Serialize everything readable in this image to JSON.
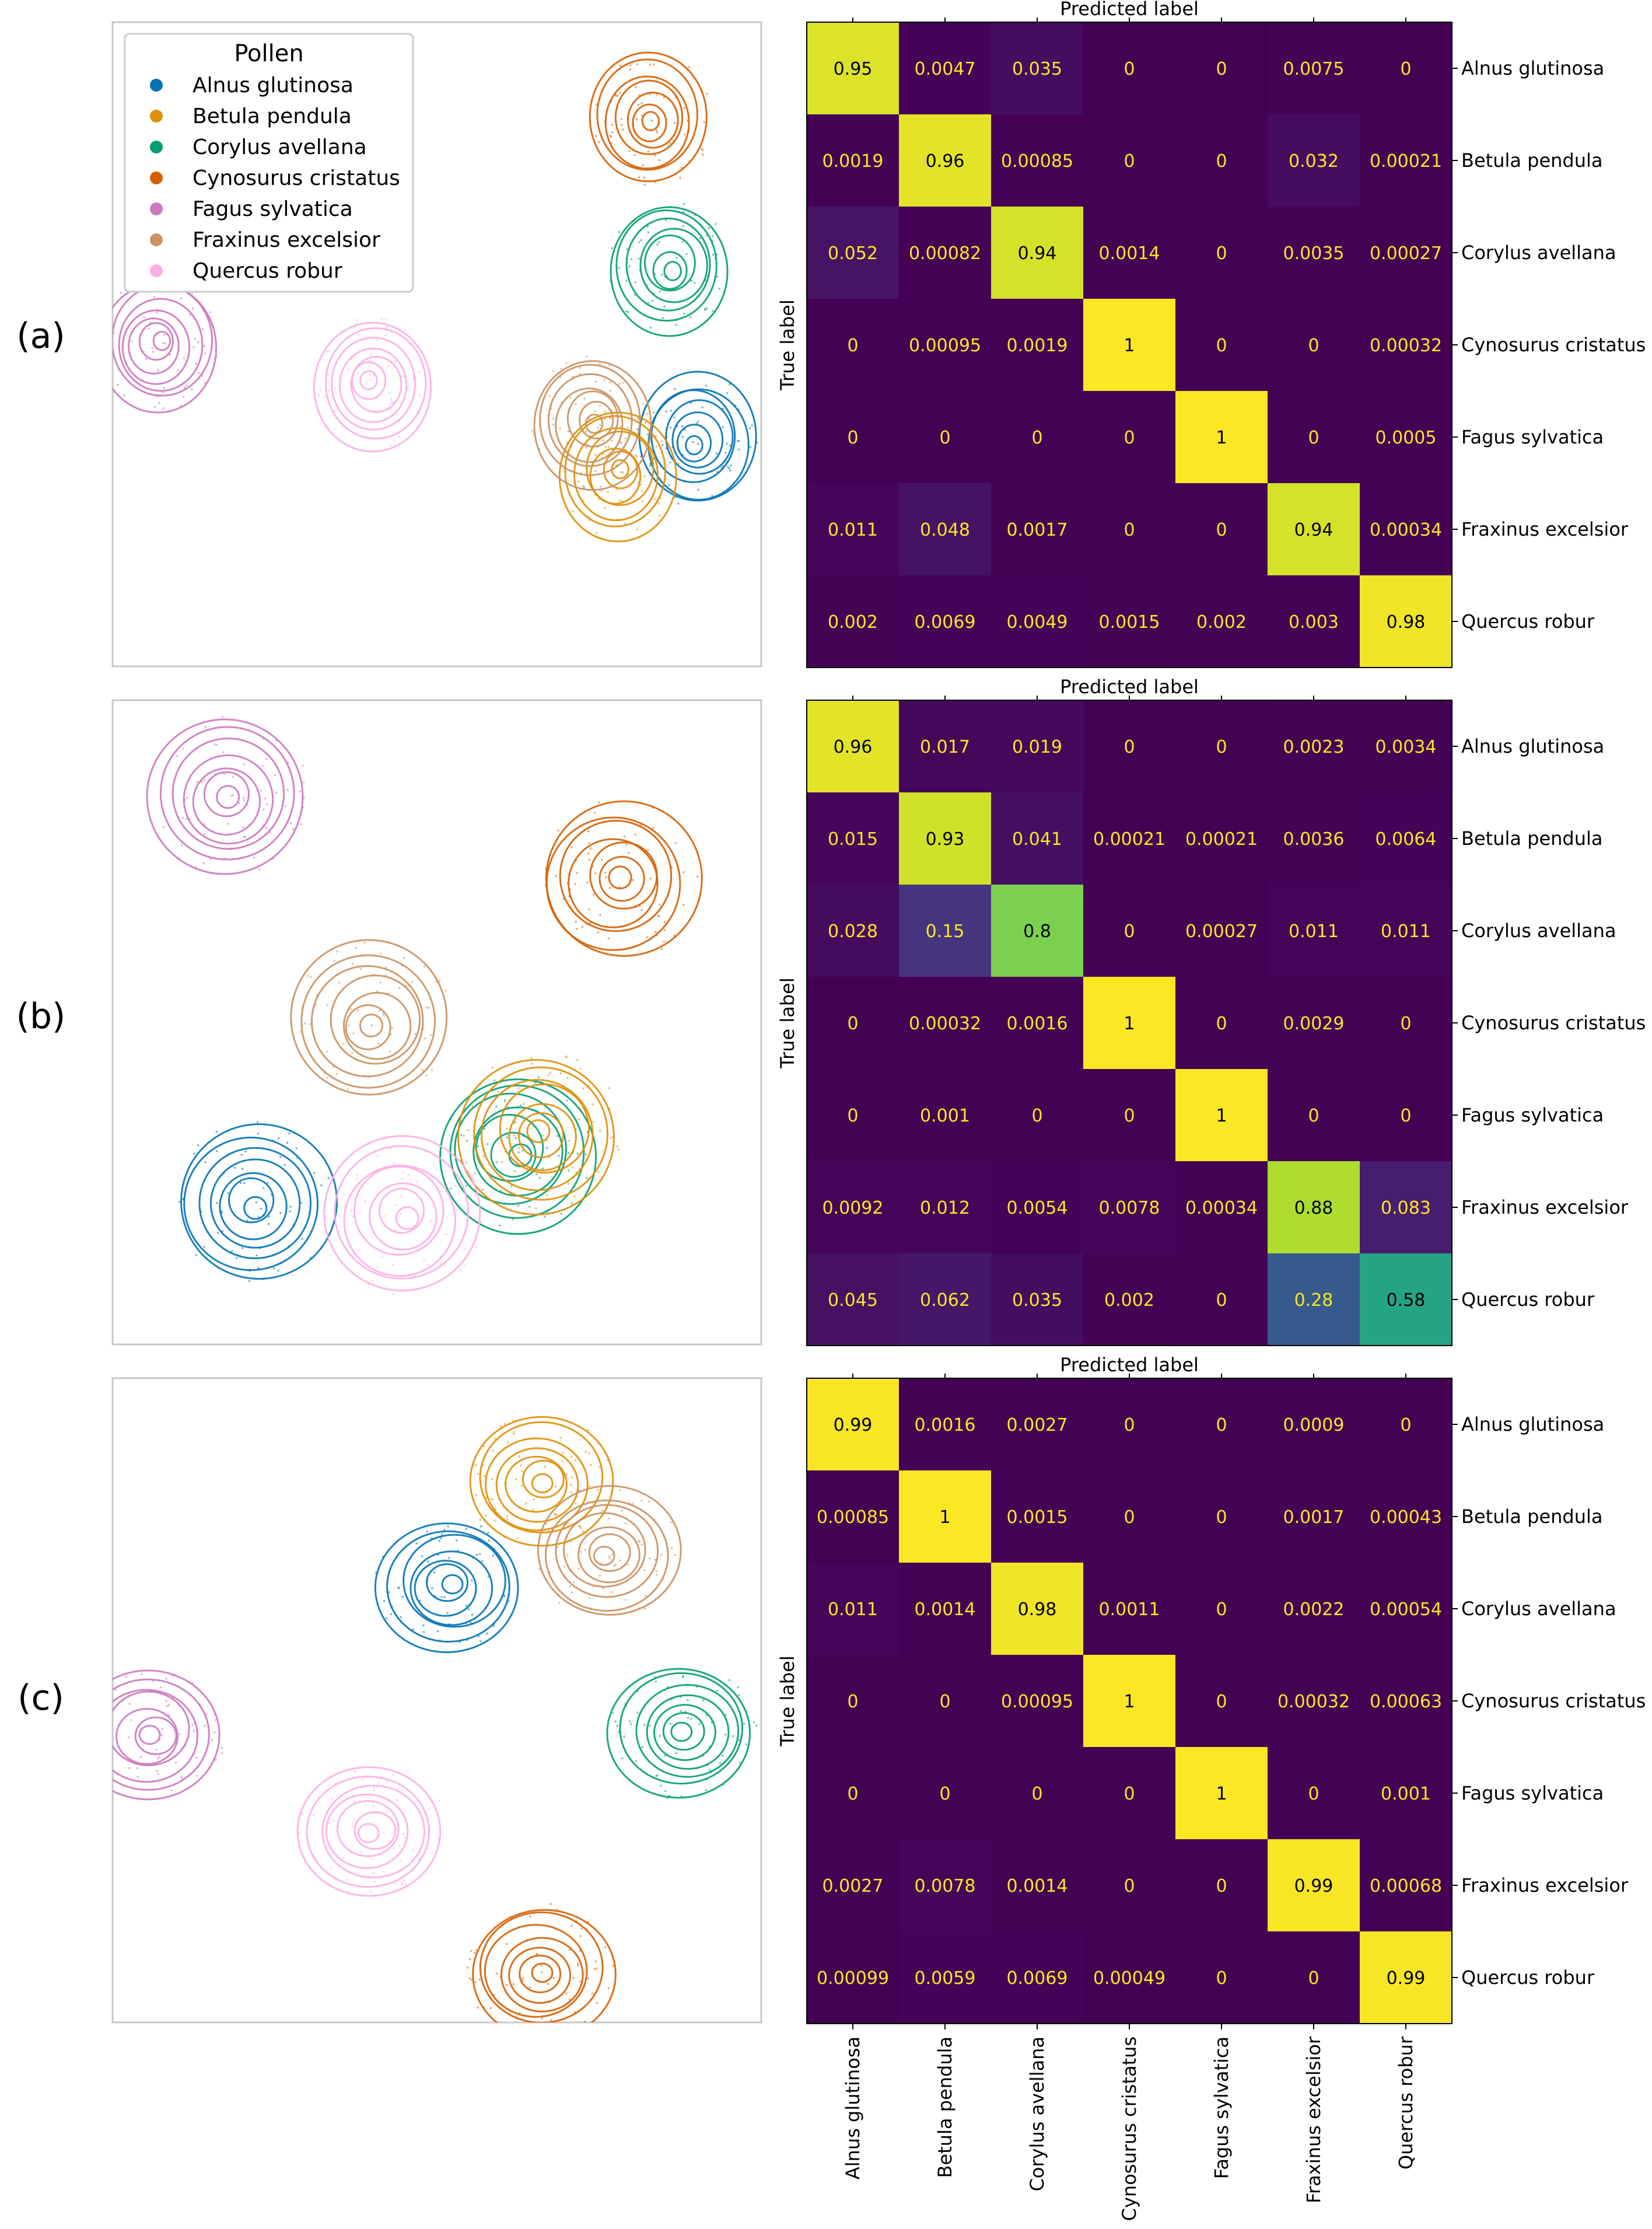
{
  "panel_labels": [
    "(a)",
    "(b)",
    "(c)"
  ],
  "legend": {
    "title": "Pollen",
    "items": [
      {
        "label": "Alnus glutinosa",
        "color": "#0173b2"
      },
      {
        "label": "Betula pendula",
        "color": "#de8f05"
      },
      {
        "label": "Corylus avellana",
        "color": "#029e73"
      },
      {
        "label": "Cynosurus cristatus",
        "color": "#d55e00"
      },
      {
        "label": "Fagus sylvatica",
        "color": "#cc78bc"
      },
      {
        "label": "Fraxinus excelsior",
        "color": "#ca9161"
      },
      {
        "label": "Quercus robur",
        "color": "#fbafe4"
      }
    ]
  },
  "colormap": "viridis",
  "chart_data": [
    {
      "type": "scatter",
      "panel": "(a)",
      "description_kind": "2D embedding with per-class density contours",
      "legend_title": "Pollen",
      "legend_placement": "top-left",
      "clusters": [
        {
          "class": "Cynosurus cristatus",
          "x": 0.83,
          "y": 0.85
        },
        {
          "class": "Corylus avellana",
          "x": 0.86,
          "y": 0.62
        },
        {
          "class": "Alnus glutinosa",
          "x": 0.9,
          "y": 0.35
        },
        {
          "class": "Betula pendula",
          "x": 0.78,
          "y": 0.3
        },
        {
          "class": "Fraxinus excelsior",
          "x": 0.74,
          "y": 0.38
        },
        {
          "class": "Fagus sylvatica",
          "x": 0.07,
          "y": 0.5
        },
        {
          "class": "Quercus robur",
          "x": 0.4,
          "y": 0.44
        }
      ]
    },
    {
      "type": "heatmap",
      "panel": "(a)",
      "title": "Predicted label",
      "xlabel": "Predicted label",
      "ylabel": "True label",
      "categories": [
        "Alnus glutinosa",
        "Betula pendula",
        "Corylus avellana",
        "Cynosurus cristatus",
        "Fagus sylvatica",
        "Fraxinus excelsior",
        "Quercus robur"
      ],
      "matrix": [
        [
          0.95,
          0.0047,
          0.035,
          0,
          0,
          0.0075,
          0
        ],
        [
          0.0019,
          0.96,
          0.00085,
          0,
          0,
          0.032,
          0.00021
        ],
        [
          0.052,
          0.00082,
          0.94,
          0.0014,
          0,
          0.0035,
          0.00027
        ],
        [
          0,
          0.00095,
          0.0019,
          1,
          0,
          0,
          0.00032
        ],
        [
          0,
          0,
          0,
          0,
          1,
          0,
          0.0005
        ],
        [
          0.011,
          0.048,
          0.0017,
          0,
          0,
          0.94,
          0.00034
        ],
        [
          0.002,
          0.0069,
          0.0049,
          0.0015,
          0.002,
          0.003,
          0.98
        ]
      ]
    },
    {
      "type": "scatter",
      "panel": "(b)",
      "description_kind": "2D embedding with per-class density contours",
      "clusters": [
        {
          "class": "Fagus sylvatica",
          "x": 0.18,
          "y": 0.85
        },
        {
          "class": "Cynosurus cristatus",
          "x": 0.78,
          "y": 0.72
        },
        {
          "class": "Fraxinus excelsior",
          "x": 0.4,
          "y": 0.5
        },
        {
          "class": "Alnus glutinosa",
          "x": 0.22,
          "y": 0.22
        },
        {
          "class": "Corylus avellana",
          "x": 0.62,
          "y": 0.3
        },
        {
          "class": "Betula pendula",
          "x": 0.66,
          "y": 0.33
        },
        {
          "class": "Quercus robur",
          "x": 0.45,
          "y": 0.2
        }
      ]
    },
    {
      "type": "heatmap",
      "panel": "(b)",
      "title": "Predicted label",
      "xlabel": "Predicted label",
      "ylabel": "True label",
      "categories": [
        "Alnus glutinosa",
        "Betula pendula",
        "Corylus avellana",
        "Cynosurus cristatus",
        "Fagus sylvatica",
        "Fraxinus excelsior",
        "Quercus robur"
      ],
      "matrix": [
        [
          0.96,
          0.017,
          0.019,
          0,
          0,
          0.0023,
          0.0034
        ],
        [
          0.015,
          0.93,
          0.041,
          0.00021,
          0.00021,
          0.0036,
          0.0064
        ],
        [
          0.028,
          0.15,
          0.8,
          0,
          0.00027,
          0.011,
          0.011
        ],
        [
          0,
          0.00032,
          0.0016,
          1,
          0,
          0.0029,
          0
        ],
        [
          0,
          0.001,
          0,
          0,
          1,
          0,
          0
        ],
        [
          0.0092,
          0.012,
          0.0054,
          0.0078,
          0.00034,
          0.88,
          0.083
        ],
        [
          0.045,
          0.062,
          0.035,
          0.002,
          0,
          0.28,
          0.58
        ]
      ]
    },
    {
      "type": "scatter",
      "panel": "(c)",
      "description_kind": "2D embedding with per-class density contours",
      "clusters": [
        {
          "class": "Betula pendula",
          "x": 0.66,
          "y": 0.84
        },
        {
          "class": "Fraxinus excelsior",
          "x": 0.76,
          "y": 0.73
        },
        {
          "class": "Alnus glutinosa",
          "x": 0.52,
          "y": 0.68
        },
        {
          "class": "Corylus avellana",
          "x": 0.88,
          "y": 0.45
        },
        {
          "class": "Fagus sylvatica",
          "x": 0.06,
          "y": 0.45
        },
        {
          "class": "Quercus robur",
          "x": 0.4,
          "y": 0.3
        },
        {
          "class": "Cynosurus cristatus",
          "x": 0.66,
          "y": 0.08
        }
      ]
    },
    {
      "type": "heatmap",
      "panel": "(c)",
      "title": "Predicted label",
      "xlabel": "Predicted label",
      "ylabel": "True label",
      "categories": [
        "Alnus glutinosa",
        "Betula pendula",
        "Corylus avellana",
        "Cynosurus cristatus",
        "Fagus sylvatica",
        "Fraxinus excelsior",
        "Quercus robur"
      ],
      "matrix": [
        [
          0.99,
          0.0016,
          0.0027,
          0,
          0,
          0.0009,
          0
        ],
        [
          0.00085,
          1,
          0.0015,
          0,
          0,
          0.0017,
          0.00043
        ],
        [
          0.011,
          0.0014,
          0.98,
          0.0011,
          0,
          0.0022,
          0.00054
        ],
        [
          0,
          0,
          0.00095,
          1,
          0,
          0.00032,
          0.00063
        ],
        [
          0,
          0,
          0,
          0,
          1,
          0,
          0.001
        ],
        [
          0.0027,
          0.0078,
          0.0014,
          0,
          0,
          0.99,
          0.00068
        ],
        [
          0.00099,
          0.0059,
          0.0069,
          0.00049,
          0,
          0,
          0.99
        ]
      ]
    }
  ]
}
